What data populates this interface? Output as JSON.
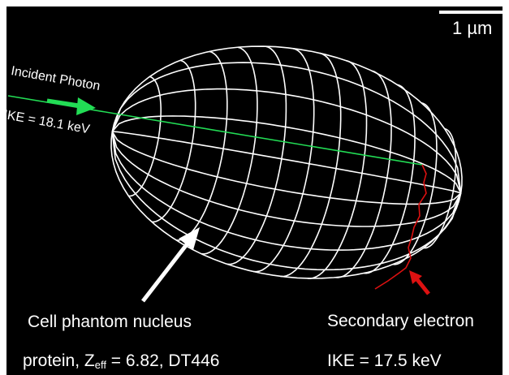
{
  "scale_bar": {
    "label": "1 µm"
  },
  "incident": {
    "label": "Incident Photon",
    "energy": "IKE = 18.1 keV"
  },
  "nucleus": {
    "label": "Cell phantom nucleus",
    "material_prefix": "protein, Z",
    "material_sub": "eff",
    "material_suffix": " = 6.82, DT446"
  },
  "electron": {
    "label": "Secondary electron",
    "energy": "IKE = 17.5 keV"
  },
  "colors": {
    "background": "#000000",
    "wireframe": "#ffffff",
    "photon": "#22dd55",
    "electron": "#dd1111"
  },
  "icons": {
    "photon_arrow": "arrow-right-icon",
    "nucleus_pointer": "arrow-up-right-icon",
    "electron_pointer": "arrow-up-left-icon"
  }
}
